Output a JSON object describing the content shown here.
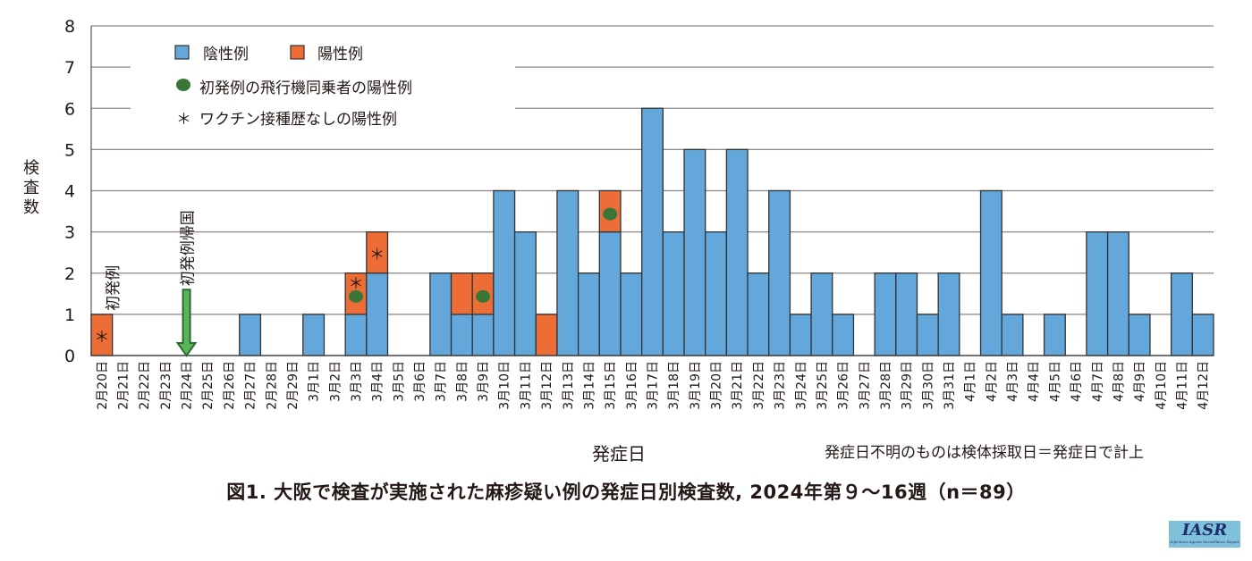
{
  "colors": {
    "negative": "#63a7db",
    "positive": "#ec6d35",
    "dot": "#3a7637",
    "arrow": "#5bb55a",
    "arrow_stroke": "#2d6a2f",
    "bar_stroke": "#333333",
    "grid": "#8a8686"
  },
  "chart_data": {
    "type": "bar",
    "stacked": true,
    "title": "図1. 大阪で検査が実施された麻疹疑い例の発症日別検査数, 2024年第９～16週（n＝89）",
    "xlabel": "発症日",
    "ylabel": "検査数",
    "ylim": [
      0,
      8
    ],
    "yticks": [
      "0",
      "1",
      "2",
      "3",
      "4",
      "5",
      "6",
      "7",
      "8"
    ],
    "grid": true,
    "note": "発症日不明のものは検体採取日＝発症日で計上",
    "categories": [
      "2月20日",
      "2月21日",
      "2月22日",
      "2月23日",
      "2月24日",
      "2月25日",
      "2月26日",
      "2月27日",
      "2月28日",
      "2月29日",
      "3月1日",
      "3月2日",
      "3月3日",
      "3月4日",
      "3月5日",
      "3月6日",
      "3月7日",
      "3月8日",
      "3月9日",
      "3月10日",
      "3月11日",
      "3月12日",
      "3月13日",
      "3月14日",
      "3月15日",
      "3月16日",
      "3月17日",
      "3月18日",
      "3月19日",
      "3月20日",
      "3月21日",
      "3月22日",
      "3月23日",
      "3月24日",
      "3月25日",
      "3月26日",
      "3月27日",
      "3月28日",
      "3月29日",
      "3月30日",
      "3月31日",
      "4月1日",
      "4月2日",
      "4月3日",
      "4月4日",
      "4月5日",
      "4月6日",
      "4月7日",
      "4月8日",
      "4月9日",
      "4月10日",
      "4月11日",
      "4月12日"
    ],
    "series": [
      {
        "name": "陰性例",
        "values": [
          0,
          0,
          0,
          0,
          0,
          0,
          0,
          1,
          0,
          0,
          1,
          0,
          1,
          2,
          0,
          0,
          2,
          1,
          1,
          4,
          3,
          0,
          4,
          2,
          3,
          2,
          6,
          3,
          5,
          3,
          5,
          2,
          4,
          1,
          2,
          1,
          0,
          2,
          2,
          1,
          2,
          0,
          4,
          1,
          0,
          1,
          0,
          3,
          3,
          1,
          0,
          2,
          1
        ]
      },
      {
        "name": "陽性例",
        "values": [
          1,
          0,
          0,
          0,
          0,
          0,
          0,
          0,
          0,
          0,
          0,
          0,
          1,
          1,
          0,
          0,
          0,
          1,
          1,
          0,
          0,
          1,
          0,
          0,
          1,
          0,
          0,
          0,
          0,
          0,
          0,
          0,
          0,
          0,
          0,
          0,
          0,
          0,
          0,
          0,
          0,
          0,
          0,
          0,
          0,
          0,
          0,
          0,
          0,
          0,
          0,
          0,
          0
        ]
      }
    ],
    "markers": {
      "dot_label": "初発例の飛行機同乗者の陽性例",
      "dot_categories": [
        "3月3日",
        "3月9日",
        "3月15日"
      ],
      "asterisk_symbol": "＊",
      "asterisk_label": "ワクチン接種歴なしの陽性例",
      "asterisk_categories": [
        "2月20日",
        "3月3日",
        "3月4日"
      ]
    },
    "annotations": [
      {
        "text": "初発例",
        "category": "2月20日"
      },
      {
        "text": "初発例帰国",
        "category": "2月24日",
        "arrow": true
      }
    ],
    "legend": {
      "position": "top-left",
      "negative_label": "陰性例",
      "positive_label": "陽性例"
    }
  },
  "logo": {
    "main": "IASR",
    "sub": "Infectious Agents Surveillance Report"
  }
}
